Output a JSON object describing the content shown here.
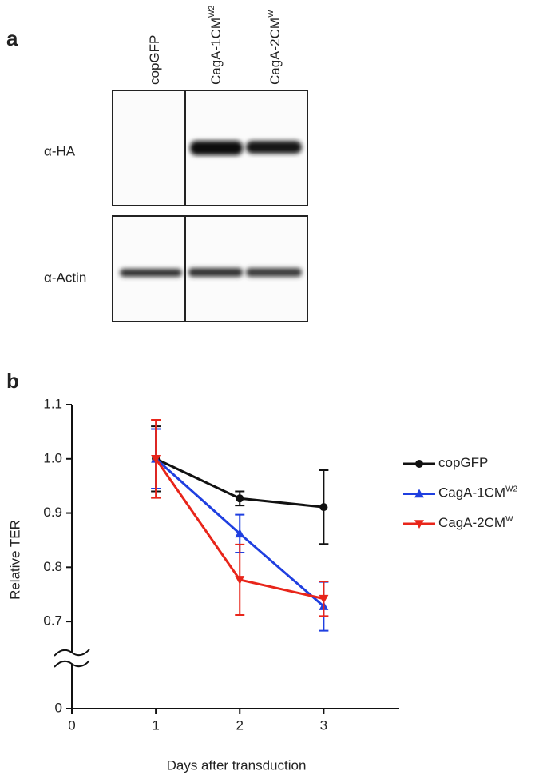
{
  "blot": {
    "panel_label": "a",
    "lanes": [
      {
        "label": "copGFP"
      },
      {
        "label": "CagA-1CM",
        "sup": "W2"
      },
      {
        "label": "CagA-2CM",
        "sup": "W"
      }
    ],
    "rows": [
      "α-HA",
      "α-Actin"
    ]
  },
  "chart_data": {
    "type": "line",
    "panel_label": "b",
    "xlabel": "Days after transduction",
    "ylabel": "Relative TER",
    "x": [
      1,
      2,
      3
    ],
    "xlim": [
      0,
      3.9
    ],
    "xticks": [
      0,
      1,
      2,
      3
    ],
    "ylim": [
      0,
      1.1
    ],
    "y_break": [
      0,
      0.65
    ],
    "yticks": [
      0,
      0.7,
      0.8,
      0.9,
      {
        "value": 1,
        "label": "1.0"
      },
      1.1
    ],
    "series": [
      {
        "name": "copGFP",
        "color": "#111111",
        "marker": "circle",
        "values": [
          1.0,
          0.927,
          0.911
        ],
        "errors": [
          0.06,
          0.013,
          0.068
        ]
      },
      {
        "name": "CagA-1CM",
        "sup": "W2",
        "color": "#1f3fe0",
        "marker": "triangle-up",
        "values": [
          1.0,
          0.862,
          0.728
        ],
        "errors": [
          0.055,
          0.035,
          0.045
        ]
      },
      {
        "name": "CagA-2CM",
        "sup": "W",
        "color": "#e8251a",
        "marker": "triangle-down",
        "values": [
          1.0,
          0.777,
          0.742
        ],
        "errors": [
          0.072,
          0.065,
          0.032
        ]
      }
    ]
  }
}
